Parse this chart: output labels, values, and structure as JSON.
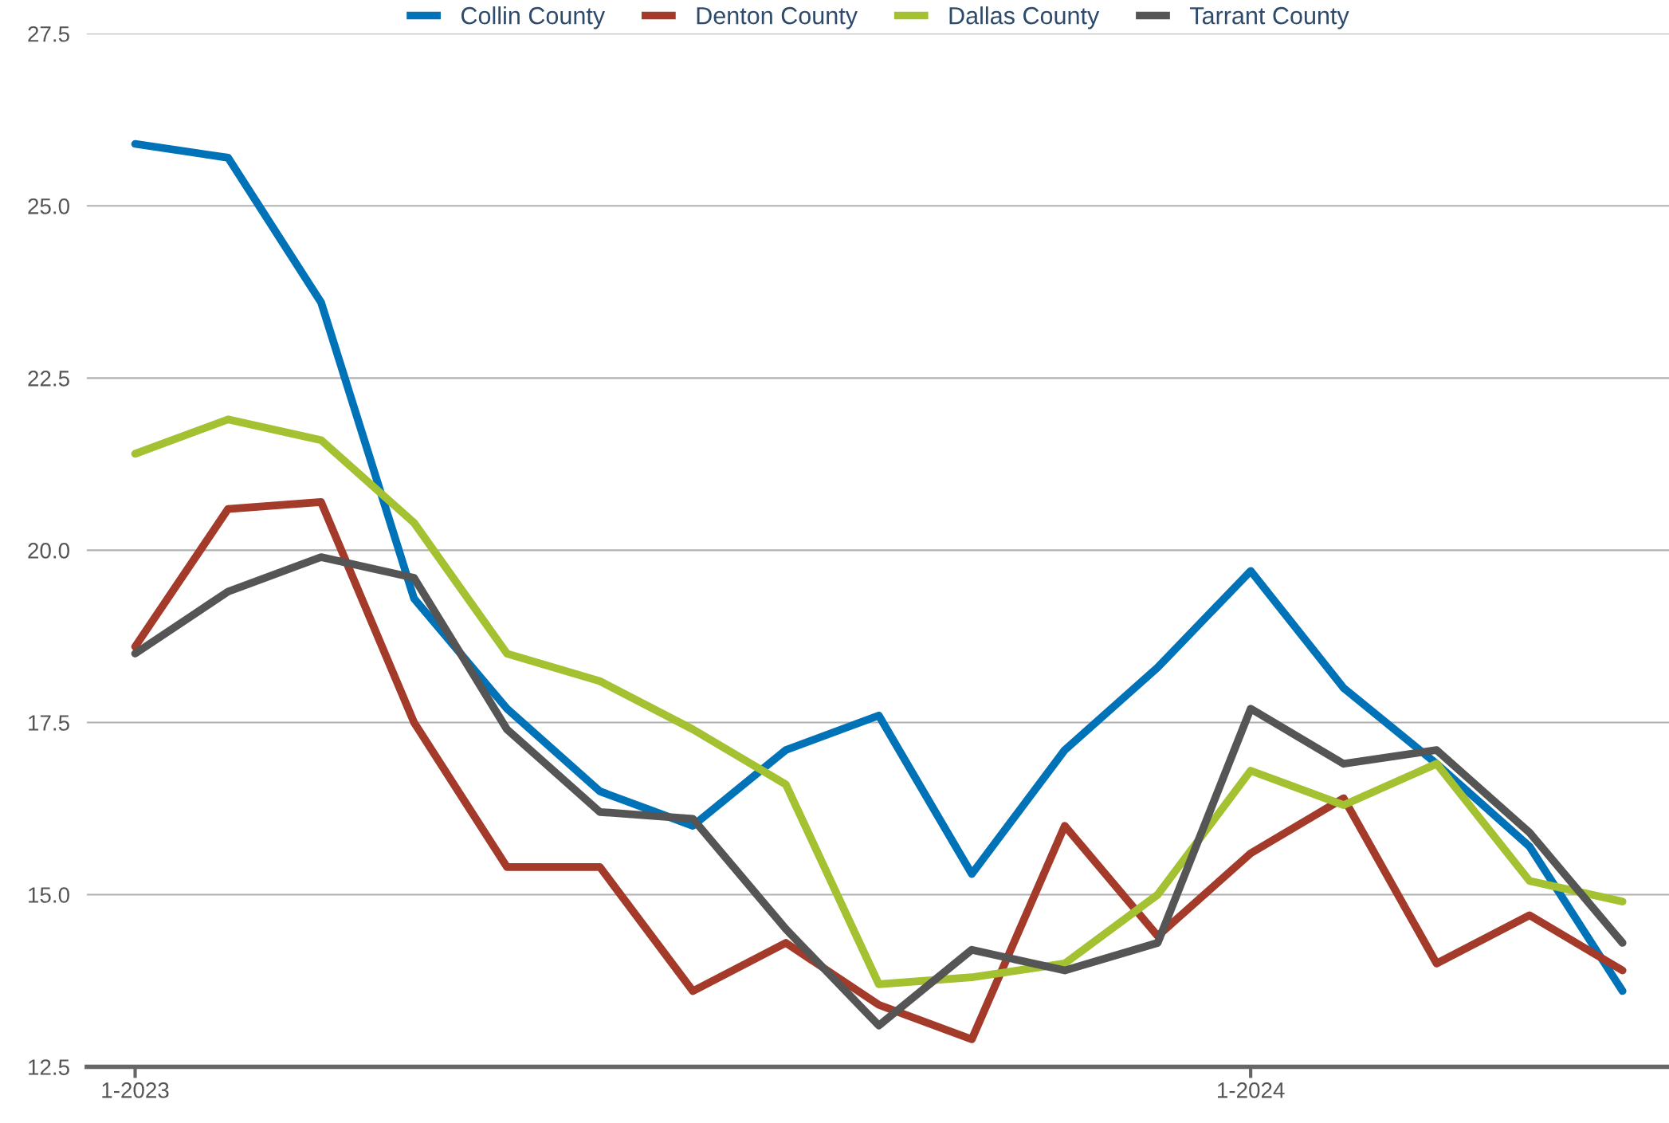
{
  "chart_data": {
    "type": "line",
    "categories": [
      "1-2023",
      null,
      null,
      null,
      null,
      null,
      null,
      null,
      null,
      null,
      null,
      null,
      "1-2024",
      null,
      null,
      null,
      null
    ],
    "series": [
      {
        "name": "Collin County",
        "color": "#0072b8",
        "values": [
          25.9,
          25.7,
          23.6,
          19.3,
          17.7,
          16.5,
          16.0,
          17.1,
          17.6,
          15.3,
          17.1,
          18.3,
          19.7,
          18.0,
          16.9,
          15.7,
          13.6
        ]
      },
      {
        "name": "Denton County",
        "color": "#a33a2a",
        "values": [
          18.6,
          20.6,
          20.7,
          17.5,
          15.4,
          15.4,
          13.6,
          14.3,
          13.4,
          12.9,
          16.0,
          14.4,
          15.6,
          16.4,
          14.0,
          14.7,
          13.9
        ]
      },
      {
        "name": "Dallas County",
        "color": "#a3c130",
        "values": [
          21.4,
          21.9,
          21.6,
          20.4,
          18.5,
          18.1,
          17.4,
          16.6,
          13.7,
          13.8,
          14.0,
          15.0,
          16.8,
          16.3,
          16.9,
          15.2,
          14.9
        ]
      },
      {
        "name": "Tarrant County",
        "color": "#555555",
        "values": [
          18.5,
          19.4,
          19.9,
          19.6,
          17.4,
          16.2,
          16.1,
          14.5,
          13.1,
          14.2,
          13.9,
          14.3,
          17.7,
          16.9,
          17.1,
          15.9,
          14.3
        ]
      }
    ],
    "ylim": [
      12.5,
      27.5
    ],
    "yticks": [
      {
        "value": 12.5,
        "label": "12.5"
      },
      {
        "value": 15,
        "label": "15.0"
      },
      {
        "value": 17.5,
        "label": "17.5"
      },
      {
        "value": 20,
        "label": "20.0"
      },
      {
        "value": 22.5,
        "label": "22.5"
      },
      {
        "value": 25,
        "label": "25.0"
      },
      {
        "value": 27.5,
        "label": "27.5"
      }
    ],
    "grid": "y",
    "legend": "top",
    "marker": "none",
    "line_style": "solid"
  }
}
